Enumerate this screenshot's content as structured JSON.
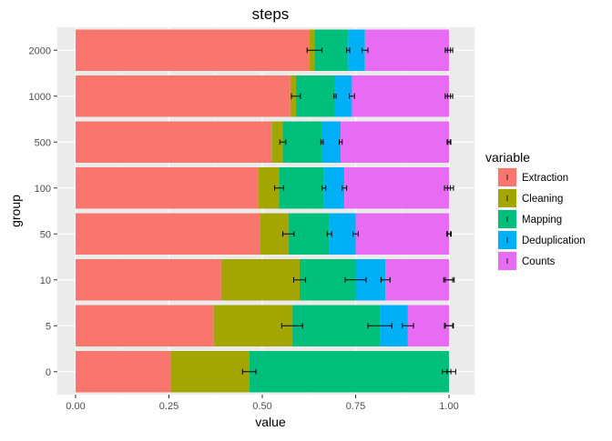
{
  "chart_data": {
    "type": "bar",
    "orientation": "horizontal",
    "stacked": true,
    "title": "steps",
    "xlabel": "value",
    "ylabel": "group",
    "xlim": [
      0,
      1
    ],
    "x_ticks": [
      "0.00",
      "0.25",
      "0.50",
      "0.75",
      "1.00"
    ],
    "x_tick_values": [
      0,
      0.25,
      0.5,
      0.75,
      1.0
    ],
    "categories": [
      "0",
      "5",
      "10",
      "50",
      "100",
      "500",
      "1000",
      "2000"
    ],
    "grid": true,
    "legend": {
      "title": "variable",
      "position": "right"
    },
    "series": [
      {
        "name": "Extraction",
        "color": "#F8766D",
        "values": [
          0.255,
          0.37,
          0.39,
          0.495,
          0.49,
          0.525,
          0.575,
          0.625
        ],
        "errors": [
          0.0,
          0.0,
          0.0,
          0.0,
          0.0,
          0.0,
          0.0,
          0.0
        ]
      },
      {
        "name": "Cleaning",
        "color": "#A3A500",
        "values": [
          0.21,
          0.21,
          0.21,
          0.075,
          0.055,
          0.03,
          0.015,
          0.015
        ],
        "errors": [
          0.018,
          0.028,
          0.016,
          0.015,
          0.012,
          0.008,
          0.012,
          0.02
        ]
      },
      {
        "name": "Mapping",
        "color": "#00BF7D",
        "values": [
          0.535,
          0.235,
          0.15,
          0.11,
          0.12,
          0.105,
          0.105,
          0.09
        ],
        "errors": [
          0.0,
          0.032,
          0.028,
          0.006,
          0.005,
          0.003,
          0.003,
          0.004
        ]
      },
      {
        "name": "Deduplication",
        "color": "#00B0F6",
        "values": [
          0.0,
          0.075,
          0.08,
          0.07,
          0.055,
          0.05,
          0.045,
          0.045
        ],
        "errors": [
          0.0,
          0.015,
          0.012,
          0.007,
          0.006,
          0.004,
          0.007,
          0.008
        ]
      },
      {
        "name": "Counts",
        "color": "#E76BF3",
        "values": [
          0.0,
          0.11,
          0.17,
          0.25,
          0.28,
          0.29,
          0.26,
          0.225
        ],
        "errors": [
          0.005,
          0.01,
          0.01,
          0.004,
          0.004,
          0.003,
          0.004,
          0.004
        ]
      }
    ],
    "total_errors": [
      0.018,
      0.012,
      0.014,
      0.006,
      0.012,
      0.005,
      0.01,
      0.01
    ]
  }
}
